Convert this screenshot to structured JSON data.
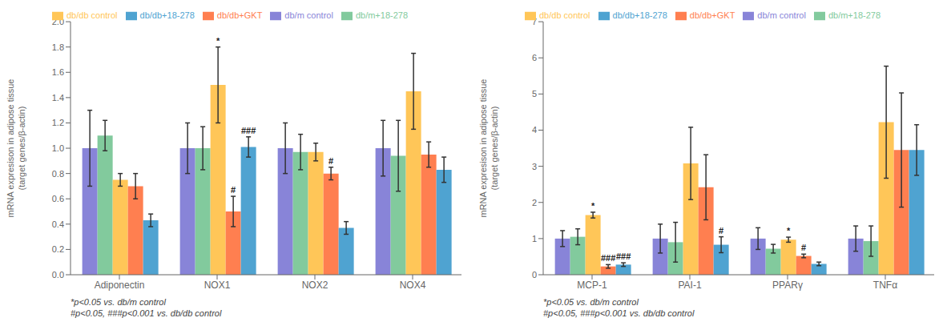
{
  "chart_data": [
    {
      "type": "bar",
      "categories": [
        "Adiponectin",
        "NOX1",
        "NOX2",
        "NOX4"
      ],
      "series": [
        {
          "name": "db/m control",
          "color": "#8884d8",
          "values": [
            1.0,
            1.0,
            1.0,
            1.0
          ],
          "errors": [
            0.3,
            0.2,
            0.2,
            0.22
          ]
        },
        {
          "name": "db/m+18-278",
          "color": "#82ca9d",
          "values": [
            1.1,
            1.0,
            0.97,
            0.94
          ],
          "errors": [
            0.12,
            0.17,
            0.14,
            0.28
          ]
        },
        {
          "name": "db/db control",
          "color": "#ffc658",
          "values": [
            0.75,
            1.5,
            0.97,
            1.45
          ],
          "errors": [
            0.05,
            0.3,
            0.07,
            0.3
          ]
        },
        {
          "name": "db/db+GKT",
          "color": "#ff7f50",
          "values": [
            0.7,
            0.5,
            0.8,
            0.95
          ],
          "errors": [
            0.1,
            0.12,
            0.05,
            0.1
          ]
        },
        {
          "name": "db/db+18-278",
          "color": "#4fa3d1",
          "values": [
            0.43,
            1.01,
            0.37,
            0.83
          ],
          "errors": [
            0.05,
            0.08,
            0.05,
            0.1
          ]
        }
      ],
      "annotations": [
        {
          "category": "NOX1",
          "series": "db/db control",
          "text": "*"
        },
        {
          "category": "NOX1",
          "series": "db/db+GKT",
          "text": "#"
        },
        {
          "category": "NOX1",
          "series": "db/db+18-278",
          "text": "###"
        },
        {
          "category": "NOX2",
          "series": "db/db+GKT",
          "text": "#"
        },
        {
          "text": "*p<0.05 vs. db/m control\n#p<0.05, ###p<0.001 vs. db/db control"
        }
      ],
      "ylabel": "mRNA expresison in adipose tissue\n(target genes/β-actin)",
      "ylim": [
        0.0,
        2.0
      ],
      "yticks": [
        {
          "value": 0,
          "label": "0.0"
        },
        0.2,
        0.4,
        0.6,
        0.8,
        {
          "value": 1,
          "label": "1.0"
        },
        1.2,
        1.4,
        1.6,
        1.8,
        {
          "value": 2,
          "label": "2.0"
        }
      ],
      "grid": false,
      "legend": "top"
    },
    {
      "type": "bar",
      "categories": [
        "MCP-1",
        "PAI-1",
        "PPARγ",
        "TNFα"
      ],
      "series": [
        {
          "name": "db/m control",
          "color": "#8884d8",
          "values": [
            1.0,
            1.0,
            1.0,
            1.0
          ],
          "errors": [
            0.22,
            0.4,
            0.3,
            0.35
          ]
        },
        {
          "name": "db/m+18-278",
          "color": "#82ca9d",
          "values": [
            1.05,
            0.9,
            0.72,
            0.93
          ],
          "errors": [
            0.22,
            0.55,
            0.12,
            0.42
          ]
        },
        {
          "name": "db/db control",
          "color": "#ffc658",
          "values": [
            1.65,
            3.08,
            0.97,
            4.22
          ],
          "errors": [
            0.08,
            1.0,
            0.07,
            1.55
          ]
        },
        {
          "name": "db/db+GKT",
          "color": "#ff7f50",
          "values": [
            0.23,
            2.42,
            0.52,
            3.45
          ],
          "errors": [
            0.05,
            0.9,
            0.05,
            1.58
          ]
        },
        {
          "name": "db/db+18-278",
          "color": "#4fa3d1",
          "values": [
            0.28,
            0.83,
            0.3,
            3.45
          ],
          "errors": [
            0.05,
            0.22,
            0.05,
            0.7
          ]
        }
      ],
      "annotations": [
        {
          "category": "MCP-1",
          "series": "db/db control",
          "text": "*"
        },
        {
          "category": "MCP-1",
          "series": "db/db+GKT",
          "text": "###"
        },
        {
          "category": "MCP-1",
          "series": "db/db+18-278",
          "text": "###"
        },
        {
          "category": "PAI-1",
          "series": "db/db+18-278",
          "text": "#"
        },
        {
          "category": "PPARγ",
          "series": "db/db control",
          "text": "*"
        },
        {
          "category": "PPARγ",
          "series": "db/db+GKT",
          "text": "#"
        },
        {
          "text": "*p<0.05 vs. db/m control\n#p<0.05, ###p<0.001 vs. db/db control"
        }
      ],
      "ylabel": "mRNA expresison in adipose tissue\n(target genes/β-actin)",
      "ylim": [
        0,
        7
      ],
      "yticks": [
        0,
        1,
        2,
        3,
        4,
        5,
        6,
        7
      ],
      "grid": false,
      "legend": "top"
    }
  ]
}
